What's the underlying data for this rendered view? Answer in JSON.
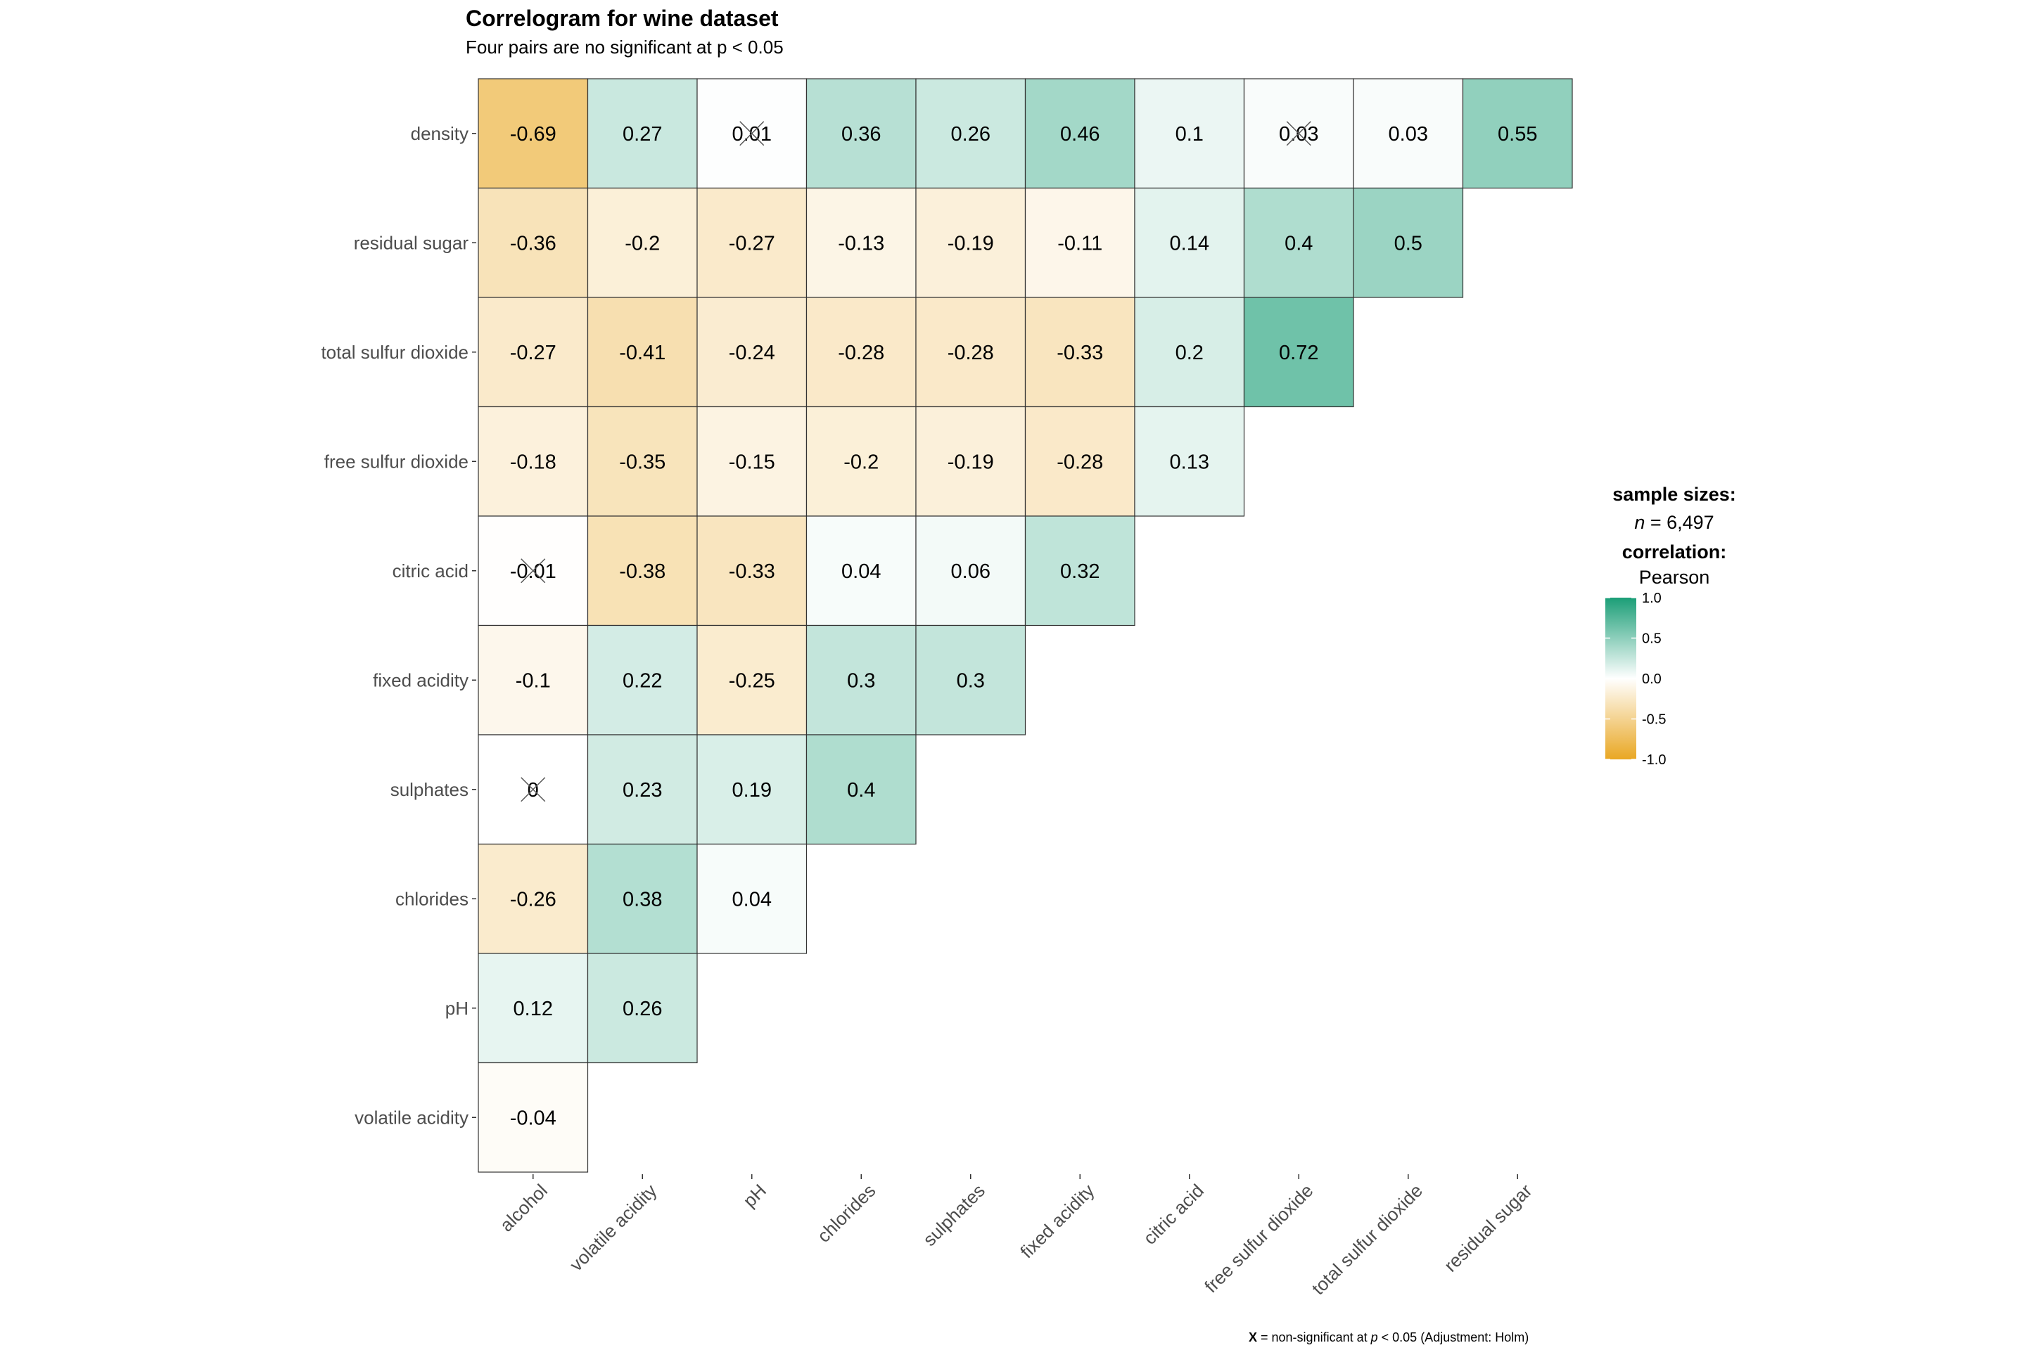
{
  "title": "Correlogram for wine dataset",
  "subtitle": "Four pairs are no significant at p < 0.05",
  "caption": {
    "marker": "X",
    "text_before": " = non-significant at ",
    "p": "p",
    "text_after": " < 0.05 (Adjustment: Holm)"
  },
  "legend": {
    "sample_title": "sample sizes:",
    "n_label": "n",
    "n_value": " = 6,497",
    "corr_title": "correlation:",
    "corr_method": "Pearson",
    "ticks": [
      "1.0",
      "0.5",
      "0.0",
      "-0.5",
      "-1.0"
    ],
    "colors": {
      "high": "#1B9E77",
      "mid": "#FFFFFF",
      "low": "#E9A723"
    }
  },
  "chart_data": {
    "type": "heatmap",
    "title": "Correlogram for wine dataset",
    "subtitle": "Four pairs are no significant at p < 0.05",
    "x_categories": [
      "alcohol",
      "volatile acidity",
      "pH",
      "chlorides",
      "sulphates",
      "fixed acidity",
      "citric acid",
      "free sulfur dioxide",
      "total sulfur dioxide",
      "residual sugar"
    ],
    "y_categories": [
      "density",
      "residual sugar",
      "total sulfur dioxide",
      "free sulfur dioxide",
      "citric acid",
      "fixed acidity",
      "sulphates",
      "chlorides",
      "pH",
      "volatile acidity"
    ],
    "values": [
      [
        "-0.69",
        "0.27",
        "0.01",
        "0.36",
        "0.26",
        "0.46",
        "0.1",
        "0.03",
        "0.03",
        "0.55"
      ],
      [
        "-0.36",
        "-0.2",
        "-0.27",
        "-0.13",
        "-0.19",
        "-0.11",
        "0.14",
        "0.4",
        "0.5"
      ],
      [
        "-0.27",
        "-0.41",
        "-0.24",
        "-0.28",
        "-0.28",
        "-0.33",
        "0.2",
        "0.72"
      ],
      [
        "-0.18",
        "-0.35",
        "-0.15",
        "-0.2",
        "-0.19",
        "-0.28",
        "0.13"
      ],
      [
        "-0.01",
        "-0.38",
        "-0.33",
        "0.04",
        "0.06",
        "0.32"
      ],
      [
        "-0.1",
        "0.22",
        "-0.25",
        "0.3",
        "0.3"
      ],
      [
        "0",
        "0.23",
        "0.19",
        "0.4"
      ],
      [
        "-0.26",
        "0.38",
        "0.04"
      ],
      [
        "0.12",
        "0.26"
      ],
      [
        "-0.04"
      ]
    ],
    "non_significant": [
      [
        0,
        2
      ],
      [
        0,
        7
      ],
      [
        4,
        0
      ],
      [
        6,
        0
      ]
    ],
    "color_range": [
      -1,
      1
    ]
  }
}
